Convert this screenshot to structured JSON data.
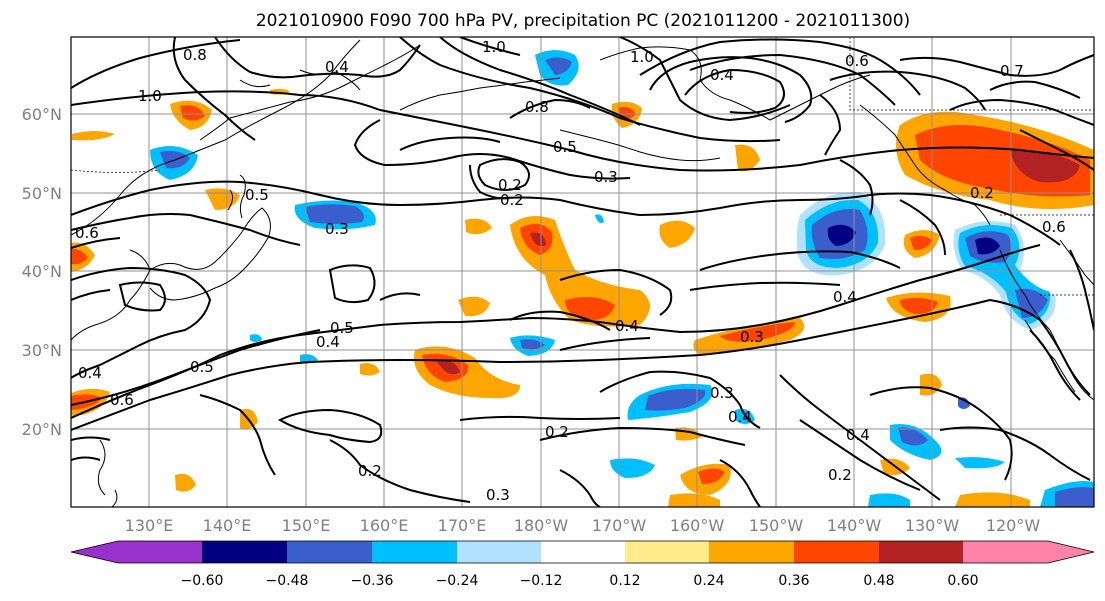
{
  "title": "2021010900 F090 700 hPa PV, precipitation PC (2021011200 - 2021011300)",
  "latitude_labels": [
    "60°N",
    "50°N",
    "40°N",
    "30°N",
    "20°N"
  ],
  "longitude_labels": [
    "130°E",
    "140°E",
    "150°E",
    "160°E",
    "170°E",
    "180°W",
    "170°W",
    "160°W",
    "150°W",
    "140°W",
    "130°W",
    "120°W"
  ],
  "colorbar": {
    "tick_labels": [
      "−0.60",
      "−0.48",
      "−0.36",
      "−0.24",
      "−0.12",
      "0.12",
      "0.24",
      "0.36",
      "0.48",
      "0.60"
    ],
    "colors": [
      "#9932cc",
      "#000080",
      "#3a5fcd",
      "#00bfff",
      "#b0e2ff",
      "#ffffff",
      "#ffec8b",
      "#ffa500",
      "#ff4500",
      "#b22222",
      "#ff82ab"
    ]
  },
  "contour_labels": [
    "1.0",
    "0.4",
    "0.8",
    "0.8",
    "1.0",
    "0.4",
    "0.6",
    "0.7",
    "1.0",
    "0.5",
    "0.3",
    "0.2",
    "0.2",
    "0.5",
    "0.6",
    "0.3",
    "0.5",
    "0.4",
    "0.4",
    "0.3",
    "0.4",
    "0.6",
    "0.5",
    "0.4",
    "0.3",
    "0.2",
    "0.2",
    "0.3",
    "0.4",
    "0.2",
    "0.4",
    "0.2",
    "0.6"
  ]
}
